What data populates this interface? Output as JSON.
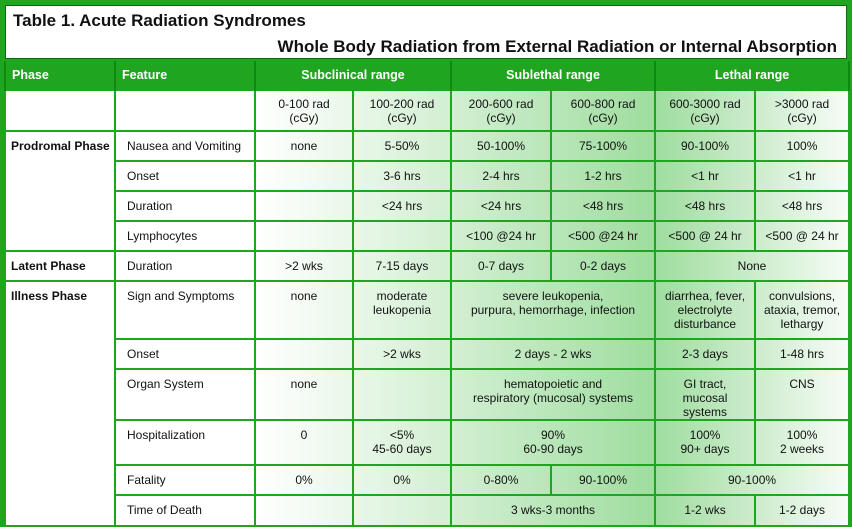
{
  "title": "Table 1. Acute Radiation Syndromes",
  "subtitle": "Whole Body Radiation from External Radiation or Internal Absorption",
  "headers": {
    "phase": "Phase",
    "feature": "Feature",
    "subclinical": "Subclinical range",
    "sublethal": "Sublethal range",
    "lethal": "Lethal range"
  },
  "doses": [
    "0-100 rad\n(cGy)",
    "100-200 rad\n(cGy)",
    "200-600 rad\n(cGy)",
    "600-800 rad\n(cGy)",
    "600-3000 rad\n(cGy)",
    ">3000 rad\n(cGy)"
  ],
  "phases": {
    "prodromal": "Prodromal Phase",
    "latent": "Latent Phase",
    "illness": "Illness Phase"
  },
  "rows": [
    {
      "feature": "Nausea and Vomiting",
      "cells": [
        "none",
        "5-50%",
        "50-100%",
        "75-100%",
        "90-100%",
        "100%"
      ]
    },
    {
      "feature": "Onset",
      "cells": [
        "",
        "3-6 hrs",
        "2-4 hrs",
        "1-2 hrs",
        "<1 hr",
        "<1 hr"
      ]
    },
    {
      "feature": "Duration",
      "cells": [
        "",
        "<24 hrs",
        "<24 hrs",
        "<48 hrs",
        "<48 hrs",
        "<48 hrs"
      ]
    },
    {
      "feature": "Lymphocytes",
      "cells": [
        "",
        "",
        "<100 @24 hr",
        "<500 @24 hr",
        "<500 @ 24 hr",
        "<500 @ 24 hr"
      ]
    },
    {
      "feature": "Duration",
      "cells": [
        ">2 wks",
        "7-15 days",
        "0-7 days",
        "0-2 days",
        "None"
      ]
    },
    {
      "feature": "Sign and Symptoms",
      "cells": [
        "none",
        "moderate\nleukopenia",
        "severe leukopenia,\npurpura, hemorrhage, infection",
        "diarrhea, fever,\nelectrolyte\ndisturbance",
        "convulsions,\nataxia, tremor,\nlethargy"
      ]
    },
    {
      "feature": "Onset",
      "cells": [
        "",
        ">2 wks",
        "2 days - 2 wks",
        "2-3 days",
        "1-48 hrs"
      ]
    },
    {
      "feature": "Organ System",
      "cells": [
        "none",
        "",
        "hematopoietic and\nrespiratory (mucosal) systems",
        "GI tract,\nmucosal systems",
        "CNS"
      ]
    },
    {
      "feature": "Hospitalization",
      "cells": [
        "0",
        "<5%\n45-60 days",
        "90%\n60-90 days",
        "100%\n90+ days",
        "100%\n2 weeks"
      ]
    },
    {
      "feature": "Fatality",
      "cells": [
        "0%",
        "0%",
        "0-80%",
        "90-100%",
        "90-100%"
      ]
    },
    {
      "feature": "Time of Death",
      "cells": [
        "",
        "",
        "3 wks-3 months",
        "1-2 wks",
        "1-2 days"
      ]
    }
  ]
}
